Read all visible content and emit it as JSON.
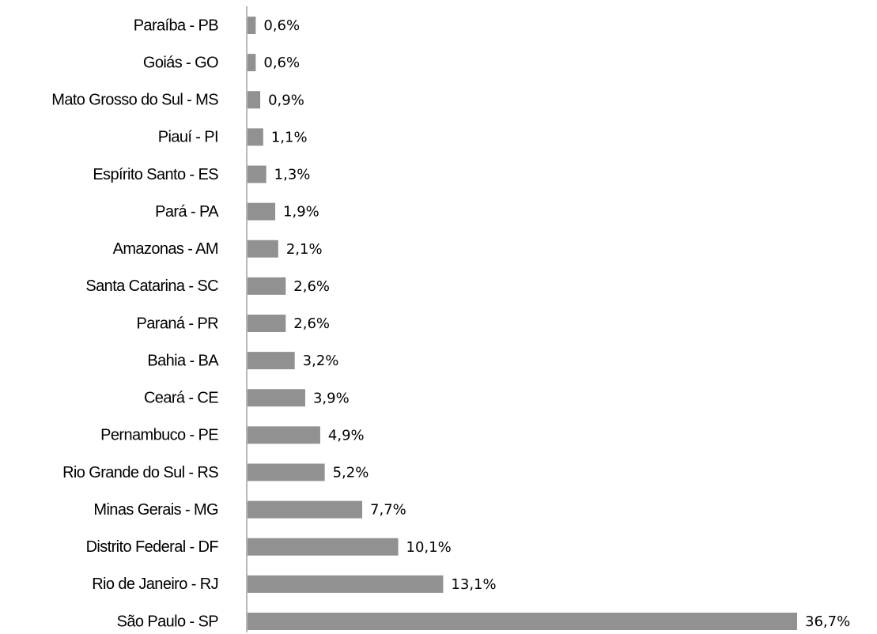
{
  "chart_data": {
    "type": "bar",
    "orientation": "horizontal",
    "color": "#919191",
    "categories": [
      "Paraíba - PB",
      "Goiás - GO",
      "Mato Grosso do Sul - MS",
      "Piauí - PI",
      "Espírito Santo - ES",
      "Pará - PA",
      "Amazonas - AM",
      "Santa Catarina - SC",
      "Paraná - PR",
      "Bahia  - BA",
      "Ceará - CE",
      "Pernambuco - PE",
      "Rio Grande do Sul - RS",
      "Minas Gerais - MG",
      "Distrito Federal  - DF",
      "Rio de Janeiro - RJ",
      "São Paulo - SP"
    ],
    "values": [
      0.6,
      0.6,
      0.9,
      1.1,
      1.3,
      1.9,
      2.1,
      2.6,
      2.6,
      3.2,
      3.9,
      4.9,
      5.2,
      7.7,
      10.1,
      13.1,
      36.7
    ],
    "value_labels": [
      "0,6%",
      "0,6%",
      "0,9%",
      "1,1%",
      "1,3%",
      "1,9%",
      "2,1%",
      "2,6%",
      "2,6%",
      "3,2%",
      "3,9%",
      "4,9%",
      "5,2%",
      "7,7%",
      "10,1%",
      "13,1%",
      "36,7%"
    ]
  }
}
